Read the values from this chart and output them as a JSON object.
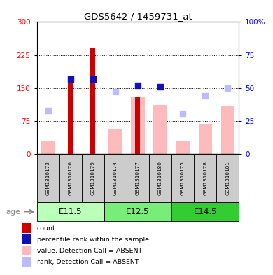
{
  "title": "GDS5642 / 1459731_at",
  "samples": [
    "GSM1310173",
    "GSM1310176",
    "GSM1310179",
    "GSM1310174",
    "GSM1310177",
    "GSM1310180",
    "GSM1310175",
    "GSM1310178",
    "GSM1310181"
  ],
  "age_groups": [
    {
      "label": "E11.5",
      "start": 0,
      "end": 3,
      "color": "#bbffbb"
    },
    {
      "label": "E12.5",
      "start": 3,
      "end": 6,
      "color": "#77ee77"
    },
    {
      "label": "E14.5",
      "start": 6,
      "end": 9,
      "color": "#33cc33"
    }
  ],
  "count_values": [
    0,
    175,
    240,
    0,
    130,
    0,
    0,
    0,
    0
  ],
  "rank_values_right": [
    0,
    57,
    57,
    0,
    52,
    51,
    0,
    0,
    0
  ],
  "absent_value": [
    28,
    0,
    0,
    55,
    130,
    112,
    30,
    68,
    110
  ],
  "absent_rank_right": [
    33,
    0,
    0,
    47,
    0,
    0,
    31,
    44,
    50
  ],
  "left_ylim": [
    0,
    300
  ],
  "right_ylim": [
    0,
    100
  ],
  "left_yticks": [
    0,
    75,
    150,
    225,
    300
  ],
  "right_yticks": [
    0,
    25,
    50,
    75,
    100
  ],
  "count_color": "#cc0000",
  "rank_color": "#1111bb",
  "absent_value_color": "#ffbbbb",
  "absent_rank_color": "#bbbbff",
  "sample_bg_color": "#cccccc",
  "legend_labels": [
    "count",
    "percentile rank within the sample",
    "value, Detection Call = ABSENT",
    "rank, Detection Call = ABSENT"
  ],
  "legend_colors": [
    "#cc0000",
    "#1111bb",
    "#ffbbbb",
    "#bbbbff"
  ],
  "age_label": "age"
}
